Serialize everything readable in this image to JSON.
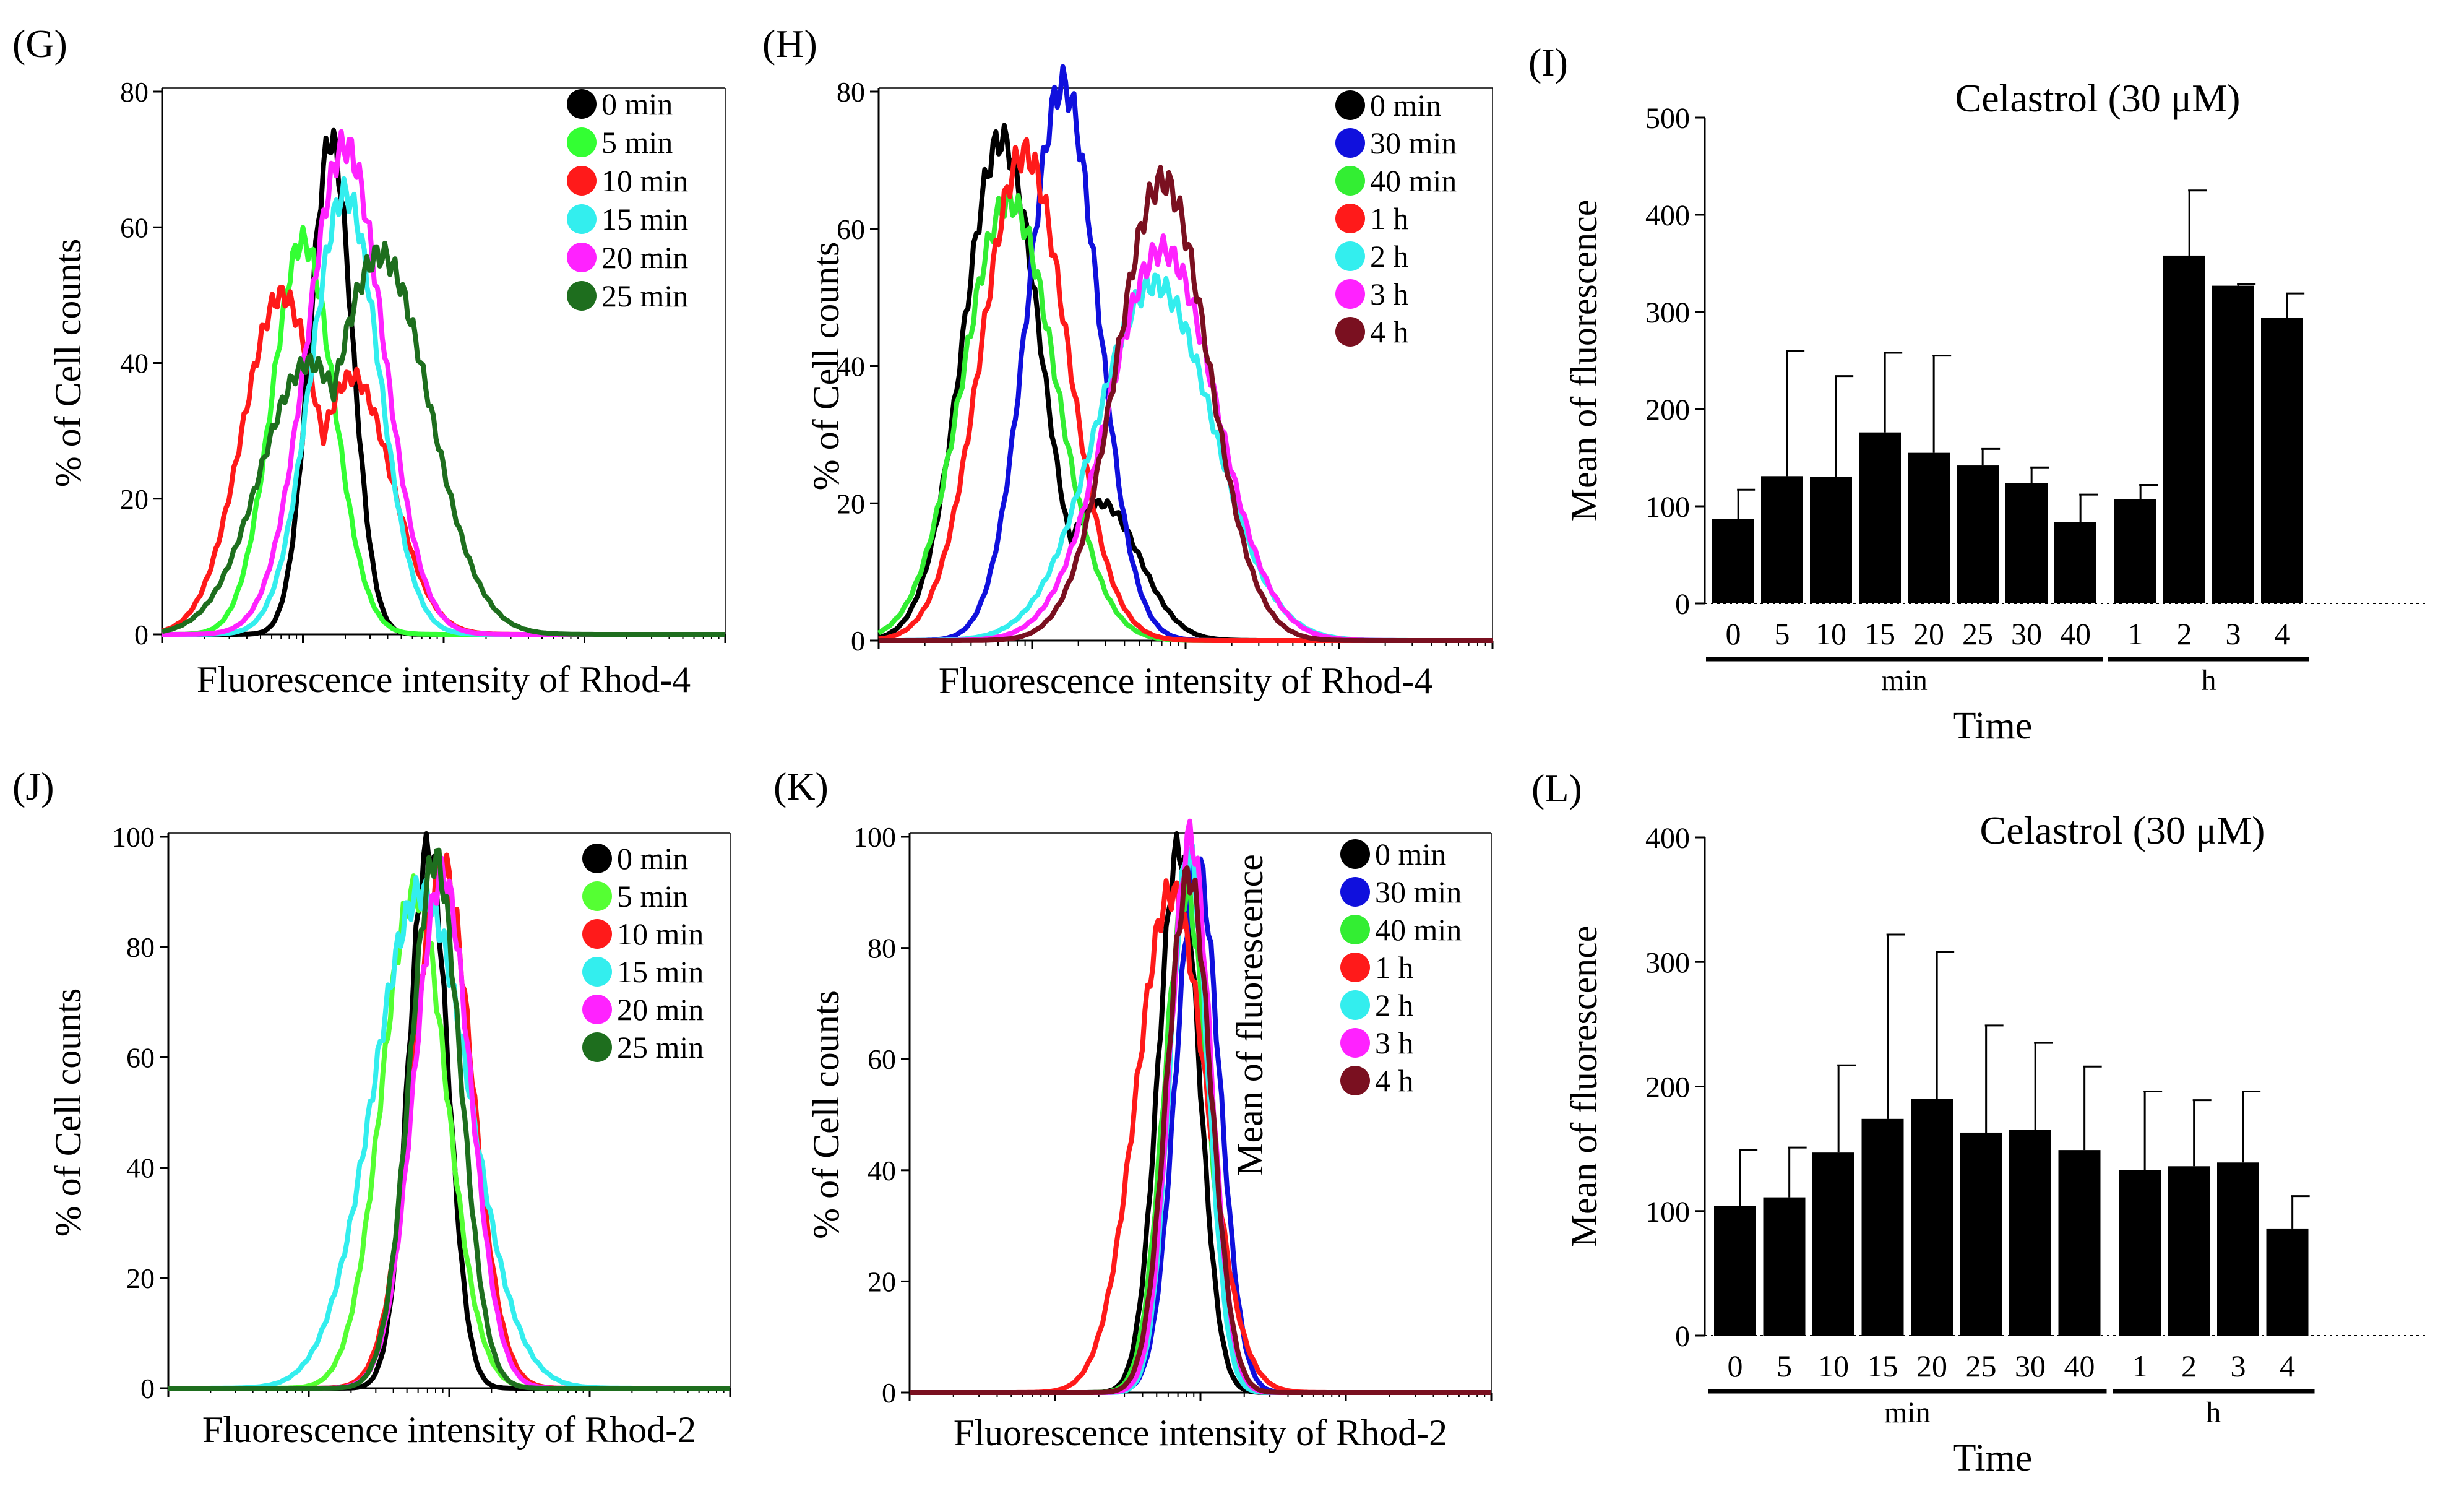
{
  "chart_data": [
    {
      "id": "G",
      "panel_label": "(G)",
      "type": "line",
      "title": "",
      "xlabel": "Fluorescence intensity of Rhod-4",
      "ylabel": "% of Cell counts",
      "xscale": "log",
      "x_decades": 4,
      "ylim": [
        0,
        80
      ],
      "yticks": [
        0,
        20,
        40,
        60,
        80
      ],
      "legend_position": "top-right",
      "series": [
        {
          "name": "0 min",
          "color": "#000000",
          "center": 1.2,
          "width": 0.15,
          "peak": 73,
          "shape": "normal"
        },
        {
          "name": "5 min",
          "color": "#33ff33",
          "center": 1.0,
          "width": 0.22,
          "peak": 58,
          "shape": "normal"
        },
        {
          "name": "10 min",
          "color": "#ff1a1a",
          "center": 0.85,
          "width": 0.28,
          "peak": 50,
          "shape": "bimodal",
          "peak2": 38,
          "center2": 1.35
        },
        {
          "name": "15 min",
          "color": "#33eeee",
          "center": 1.3,
          "width": 0.24,
          "peak": 65,
          "shape": "normal"
        },
        {
          "name": "20 min",
          "color": "#ff22ff",
          "center": 1.3,
          "width": 0.27,
          "peak": 72,
          "shape": "normal"
        },
        {
          "name": "25 min",
          "color": "#1e6e1e",
          "center": 1.55,
          "width": 0.35,
          "peak": 56,
          "shape": "bimodal",
          "peak2": 40,
          "center2": 1.05
        }
      ]
    },
    {
      "id": "H",
      "panel_label": "(H)",
      "type": "line",
      "title": "",
      "xlabel": "Fluorescence intensity of Rhod-4",
      "ylabel": "% of Cell counts",
      "xscale": "log",
      "x_decades": 4,
      "ylim": [
        0,
        80
      ],
      "yticks": [
        0,
        20,
        40,
        60,
        80
      ],
      "legend_position": "top-right",
      "series": [
        {
          "name": "0 min",
          "color": "#000000",
          "center": 0.8,
          "width": 0.25,
          "peak": 73,
          "shape": "bimodal",
          "peak2": 20,
          "center2": 1.45
        },
        {
          "name": "30 min",
          "color": "#1010dd",
          "center": 1.2,
          "width": 0.23,
          "peak": 81,
          "shape": "normal"
        },
        {
          "name": "40 min",
          "color": "#33ee33",
          "center": 0.85,
          "width": 0.3,
          "peak": 64,
          "shape": "normal"
        },
        {
          "name": "1 h",
          "color": "#ff1a1a",
          "center": 0.95,
          "width": 0.28,
          "peak": 71,
          "shape": "normal"
        },
        {
          "name": "2 h",
          "color": "#33eeee",
          "center": 1.8,
          "width": 0.38,
          "peak": 52,
          "shape": "normal"
        },
        {
          "name": "3 h",
          "color": "#ff22ff",
          "center": 1.85,
          "width": 0.35,
          "peak": 57,
          "shape": "normal"
        },
        {
          "name": "4 h",
          "color": "#7a1020",
          "center": 1.85,
          "width": 0.3,
          "peak": 67,
          "shape": "normal"
        }
      ]
    },
    {
      "id": "I",
      "panel_label": "(I)",
      "type": "bar",
      "title": "Celastrol (30 μM)",
      "xlabel": "Time",
      "ylabel": "Mean of fluorescence",
      "ylim": [
        0,
        500
      ],
      "yticks": [
        0,
        100,
        200,
        300,
        400,
        500
      ],
      "categories": [
        "0",
        "5",
        "10",
        "15",
        "20",
        "25",
        "30",
        "40",
        "1",
        "2",
        "3",
        "4"
      ],
      "values": [
        87,
        131,
        130,
        176,
        155,
        142,
        124,
        84,
        107,
        358,
        327,
        294
      ],
      "errors": [
        30,
        129,
        104,
        82,
        100,
        17,
        16,
        28,
        15,
        67,
        2,
        25
      ],
      "groups": [
        {
          "label": "min",
          "from": 0,
          "to": 7
        },
        {
          "label": "h",
          "from": 8,
          "to": 11
        }
      ]
    },
    {
      "id": "J",
      "panel_label": "(J)",
      "type": "line",
      "title": "",
      "xlabel": "Fluorescence intensity of Rhod-2",
      "ylabel": "% of Cell counts",
      "xscale": "log",
      "x_decades": 4,
      "ylim": [
        0,
        100
      ],
      "yticks": [
        0,
        20,
        40,
        60,
        80,
        100
      ],
      "legend_position": "top-right",
      "series": [
        {
          "name": "0 min",
          "color": "#000000",
          "center": 1.85,
          "width": 0.14,
          "peak": 98,
          "shape": "normal"
        },
        {
          "name": "5 min",
          "color": "#55ff33",
          "center": 1.75,
          "width": 0.23,
          "peak": 90,
          "shape": "normal"
        },
        {
          "name": "10 min",
          "color": "#ff1a1a",
          "center": 1.95,
          "width": 0.21,
          "peak": 95,
          "shape": "normal"
        },
        {
          "name": "15 min",
          "color": "#33eeee",
          "center": 1.8,
          "width": 0.34,
          "peak": 90,
          "shape": "normal"
        },
        {
          "name": "20 min",
          "color": "#ff22ff",
          "center": 1.95,
          "width": 0.2,
          "peak": 93,
          "shape": "normal"
        },
        {
          "name": "25 min",
          "color": "#1e6e1e",
          "center": 1.9,
          "width": 0.18,
          "peak": 96,
          "shape": "normal"
        }
      ]
    },
    {
      "id": "K",
      "panel_label": "(K)",
      "type": "line",
      "title": "",
      "xlabel": "Fluorescence intensity of Rhod-2",
      "ylabel": "% of Cell counts",
      "overlay_label": "Mean of fluorescence",
      "xscale": "log",
      "x_decades": 4,
      "ylim": [
        0,
        100
      ],
      "yticks": [
        0,
        20,
        40,
        60,
        80,
        100
      ],
      "legend_position": "top-right",
      "series": [
        {
          "name": "0 min",
          "color": "#000000",
          "center": 1.85,
          "width": 0.14,
          "peak": 98,
          "shape": "normal"
        },
        {
          "name": "30 min",
          "color": "#1010dd",
          "center": 1.98,
          "width": 0.15,
          "peak": 95,
          "shape": "normal"
        },
        {
          "name": "40 min",
          "color": "#33ee33",
          "center": 1.9,
          "width": 0.15,
          "peak": 90,
          "shape": "normal"
        },
        {
          "name": "1 h",
          "color": "#ff1a1a",
          "center": 1.8,
          "width": 0.24,
          "peak": 90,
          "shape": "normal"
        },
        {
          "name": "2 h",
          "color": "#33eeee",
          "center": 1.92,
          "width": 0.13,
          "peak": 97,
          "shape": "normal"
        },
        {
          "name": "3 h",
          "color": "#ff22ff",
          "center": 1.93,
          "width": 0.14,
          "peak": 100,
          "shape": "normal"
        },
        {
          "name": "4 h",
          "color": "#7a1020",
          "center": 1.92,
          "width": 0.15,
          "peak": 93,
          "shape": "normal"
        }
      ]
    },
    {
      "id": "L",
      "panel_label": "(L)",
      "type": "bar",
      "title": "Celastrol (30 μM)",
      "xlabel": "Time",
      "ylabel": "Mean of fluorescence",
      "ylim": [
        0,
        400
      ],
      "yticks": [
        0,
        100,
        200,
        300,
        400
      ],
      "categories": [
        "0",
        "5",
        "10",
        "15",
        "20",
        "25",
        "30",
        "40",
        "1",
        "2",
        "3",
        "4"
      ],
      "values": [
        104,
        111,
        147,
        174,
        190,
        163,
        165,
        149,
        133,
        136,
        139,
        86
      ],
      "errors": [
        45,
        40,
        70,
        148,
        118,
        86,
        70,
        67,
        63,
        53,
        57,
        26
      ],
      "groups": [
        {
          "label": "min",
          "from": 0,
          "to": 7
        },
        {
          "label": "h",
          "from": 8,
          "to": 11
        }
      ]
    }
  ]
}
